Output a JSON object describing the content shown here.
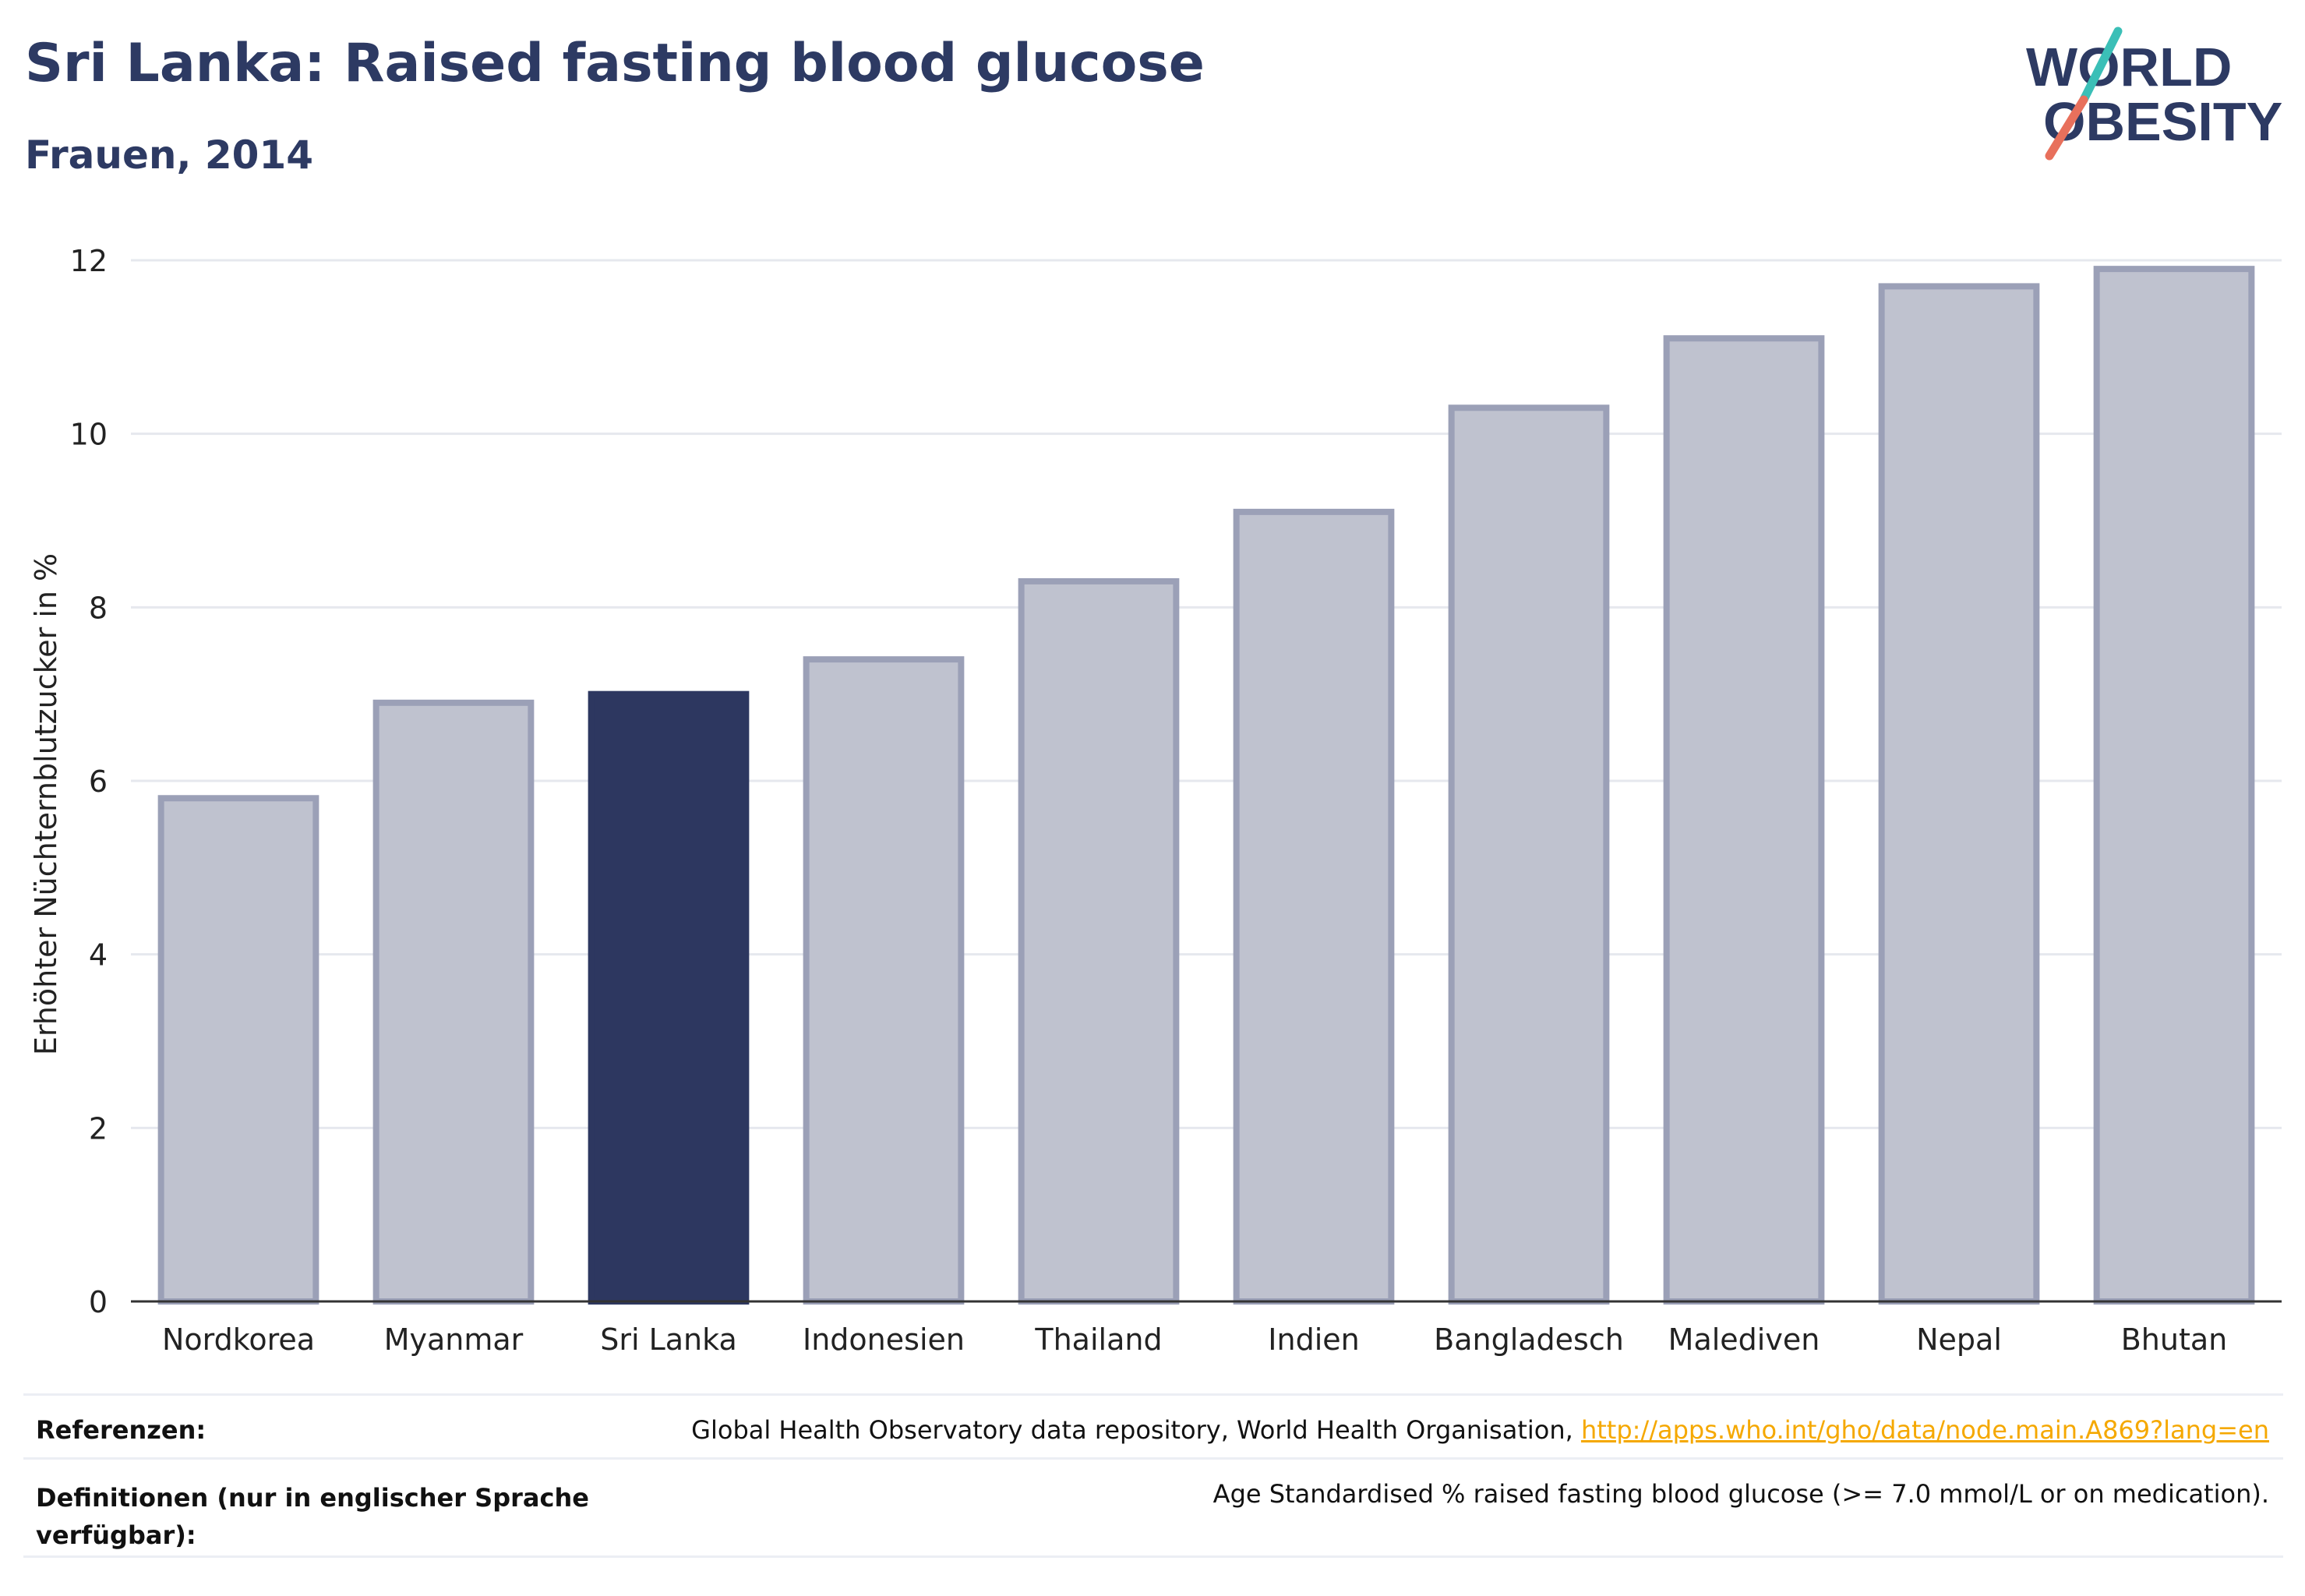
{
  "header": {
    "title": "Sri Lanka: Raised fasting blood glucose",
    "subtitle": "Frauen, 2014"
  },
  "logo": {
    "line1": "WORLD",
    "line2": "OBESITY",
    "colors": {
      "text": "#2d3a63",
      "slash_teal": "#3bbfb7",
      "slash_red": "#e8705c"
    }
  },
  "chart_data": {
    "type": "bar",
    "title": "Sri Lanka: Raised fasting blood glucose",
    "subtitle": "Frauen, 2014",
    "categories": [
      "Nordkorea",
      "Myanmar",
      "Sri Lanka",
      "Indonesien",
      "Thailand",
      "Indien",
      "Bangladesch",
      "Malediven",
      "Nepal",
      "Bhutan"
    ],
    "values": [
      5.8,
      6.9,
      7.0,
      7.4,
      8.3,
      9.1,
      10.3,
      11.1,
      11.7,
      11.9
    ],
    "highlight": "Sri Lanka",
    "xlabel": "",
    "ylabel": "Erhöhter Nüchternblutzucker in %",
    "ylim": [
      0,
      12
    ],
    "yticks": [
      0,
      2,
      4,
      6,
      8,
      10,
      12
    ],
    "grid": true,
    "colors": {
      "bar": "#bfc2cf",
      "bar_border": "#9ba0b7",
      "highlight": "#2d3760",
      "grid": "#e6e8ee",
      "axis": "#333333"
    }
  },
  "footer": {
    "references_label": "Referenzen:",
    "references_text": "Global Health Observatory data repository, World Health Organisation, ",
    "references_link": "http://apps.who.int/gho/data/node.main.A869?lang=en",
    "definitions_label": "Definitionen (nur in englischer Sprache verfügbar):",
    "definitions_text": "Age Standardised % raised fasting blood glucose (>= 7.0 mmol/L or on medication)."
  }
}
